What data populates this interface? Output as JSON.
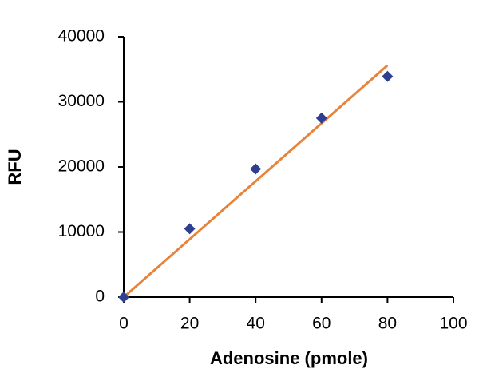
{
  "chart_data": {
    "type": "scatter",
    "x_label": "Adenosine (pmole)",
    "y_label": "RFU",
    "x": [
      0,
      20,
      40,
      60,
      80
    ],
    "values": [
      0,
      10500,
      19700,
      27500,
      33900
    ],
    "color": "#2e3f8f",
    "trendline": {
      "x": [
        0,
        80
      ],
      "values": [
        0,
        35600
      ],
      "color": "#e8833a"
    },
    "xlim": [
      0,
      100
    ],
    "xticks": [
      0,
      20,
      40,
      60,
      80,
      100
    ],
    "ylim": [
      0,
      40000
    ],
    "yticks": [
      0,
      10000,
      20000,
      30000,
      40000
    ]
  }
}
